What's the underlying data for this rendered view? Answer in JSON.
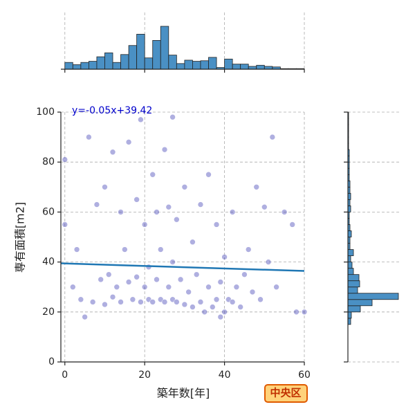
{
  "chart_data": {
    "type": "scatter",
    "xlabel": "築年数[年]",
    "ylabel": "専有面積[m2]",
    "xlim": [
      -1,
      60
    ],
    "ylim": [
      0,
      100
    ],
    "xticks": [
      0,
      20,
      40,
      60
    ],
    "yticks": [
      0,
      20,
      40,
      60,
      80,
      100
    ],
    "grid": true,
    "color": "#1a1aa6",
    "x": [
      0,
      0,
      2,
      3,
      4,
      5,
      6,
      7,
      8,
      9,
      10,
      10,
      11,
      12,
      12,
      13,
      14,
      14,
      15,
      16,
      16,
      17,
      18,
      18,
      19,
      19,
      20,
      20,
      21,
      21,
      22,
      22,
      23,
      23,
      24,
      24,
      25,
      25,
      26,
      26,
      27,
      27,
      27,
      28,
      28,
      29,
      30,
      30,
      31,
      32,
      32,
      33,
      34,
      34,
      35,
      36,
      36,
      37,
      38,
      38,
      39,
      39,
      40,
      40,
      41,
      42,
      42,
      43,
      44,
      45,
      46,
      47,
      48,
      49,
      50,
      51,
      52,
      53,
      55,
      57,
      58,
      60
    ],
    "y": [
      81,
      55,
      30,
      45,
      25,
      18,
      90,
      24,
      63,
      33,
      23,
      70,
      35,
      26,
      84,
      30,
      60,
      24,
      45,
      32,
      88,
      25,
      65,
      34,
      24,
      97,
      30,
      55,
      25,
      38,
      24,
      75,
      33,
      60,
      25,
      45,
      24,
      85,
      30,
      62,
      25,
      40,
      98,
      24,
      57,
      33,
      23,
      70,
      28,
      22,
      48,
      35,
      24,
      63,
      20,
      30,
      75,
      22,
      25,
      55,
      18,
      32,
      20,
      42,
      25,
      24,
      60,
      30,
      22,
      35,
      45,
      28,
      70,
      25,
      62,
      40,
      90,
      30,
      60,
      55,
      20,
      20
    ],
    "regression": {
      "slope": -0.05,
      "intercept": 39.42,
      "label": "y=-0.05x+39.42",
      "color": "#1f77b4"
    },
    "top_histogram": {
      "bins": [
        0,
        2,
        4,
        6,
        8,
        10,
        12,
        14,
        16,
        18,
        20,
        22,
        24,
        26,
        28,
        30,
        32,
        34,
        36,
        38,
        40,
        42,
        44,
        46,
        48,
        50,
        52,
        54,
        56,
        58,
        60
      ],
      "counts": [
        12,
        8,
        12,
        14,
        22,
        29,
        12,
        26,
        42,
        62,
        20,
        51,
        76,
        25,
        10,
        16,
        14,
        15,
        21,
        3,
        18,
        9,
        9,
        5,
        7,
        5,
        4,
        1,
        1,
        1
      ],
      "color": "#4a90c4"
    },
    "right_histogram": {
      "bins": [
        15,
        17.5,
        20,
        22.5,
        25,
        27.5,
        30,
        32.5,
        35,
        37.5,
        40,
        42.5,
        45,
        47.5,
        50,
        52.5,
        55,
        57.5,
        60,
        62.5,
        65,
        67.5,
        70,
        72.5,
        75,
        77.5,
        80,
        82.5,
        85,
        87.5,
        90,
        92.5,
        95,
        97.5,
        100
      ],
      "counts": [
        4,
        5,
        18,
        35,
        73,
        14,
        17,
        16,
        8,
        6,
        4,
        8,
        3,
        3,
        5,
        3,
        2,
        2,
        4,
        3,
        4,
        3,
        3,
        2,
        2,
        2,
        2,
        2,
        1,
        1,
        1,
        1,
        1,
        1
      ],
      "color": "#4a90c4"
    },
    "badge": "中央区"
  }
}
